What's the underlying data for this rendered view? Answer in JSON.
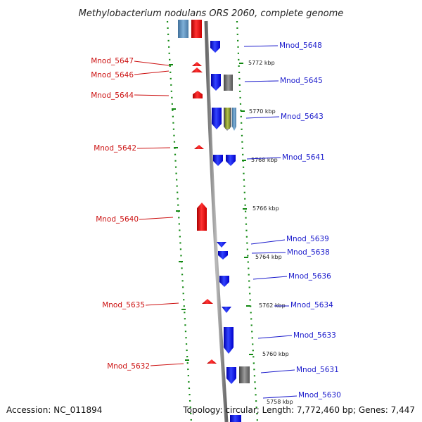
{
  "title": "Methylobacterium nodulans ORS 2060, complete genome",
  "footer": {
    "accession": "Accession: NC_011894",
    "info": "Topology: circular; Length: 7,772,460 bp; Genes: 7,447"
  },
  "colors": {
    "forward": "#ee1111",
    "reverse": "#1a1aee",
    "left_label": "#cc1111",
    "right_label": "#1a1acc",
    "backbone": "#888888",
    "grid": "#118811"
  },
  "left_genes": [
    "Mnod_5647",
    "Mnod_5646",
    "Mnod_5644",
    "Mnod_5642",
    "Mnod_5640",
    "Mnod_5635",
    "Mnod_5632"
  ],
  "right_genes": [
    "Mnod_5648",
    "Mnod_5645",
    "Mnod_5643",
    "Mnod_5641",
    "Mnod_5639",
    "Mnod_5638",
    "Mnod_5636",
    "Mnod_5634",
    "Mnod_5633",
    "Mnod_5631",
    "Mnod_5630"
  ],
  "ticks": [
    "5772 kbp",
    "5770 kbp",
    "5768 kbp",
    "5766 kbp",
    "5764 kbp",
    "5762 kbp",
    "5760 kbp",
    "5758 kbp"
  ]
}
